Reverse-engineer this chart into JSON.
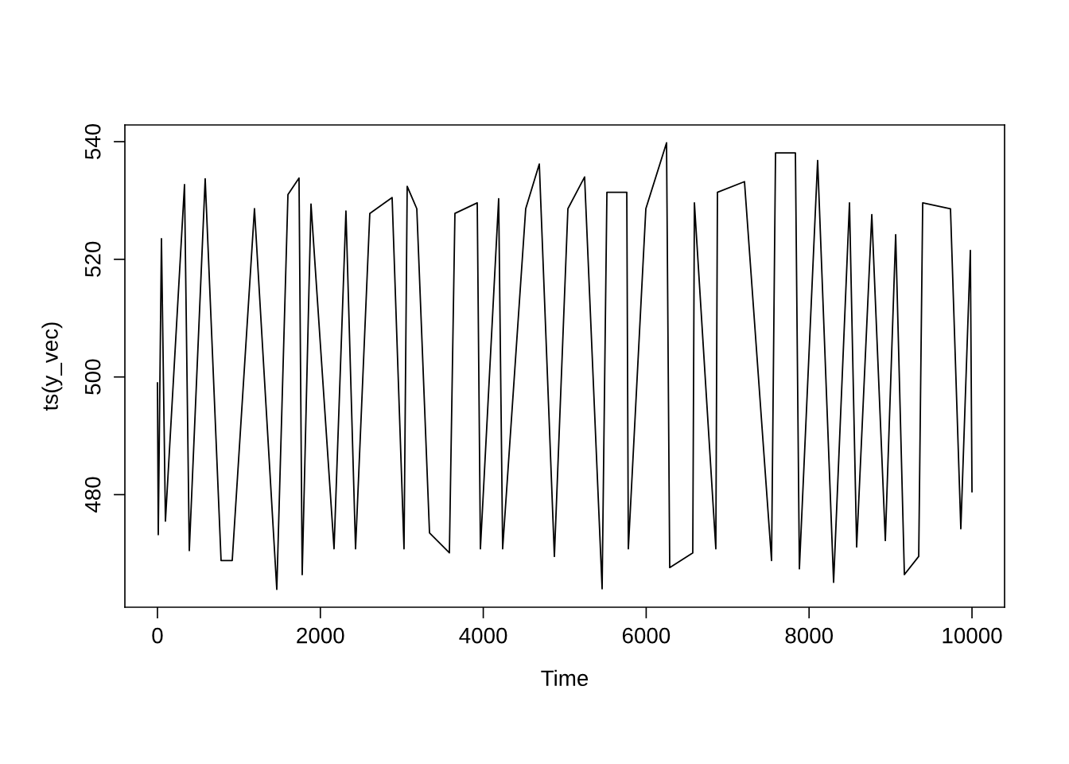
{
  "chart_data": {
    "type": "line",
    "xlabel": "Time",
    "ylabel": "ts(y_vec)",
    "xlim": [
      -400,
      10400
    ],
    "ylim": [
      460.86,
      542.84
    ],
    "xticks": [
      0,
      2000,
      4000,
      6000,
      8000,
      10000
    ],
    "yticks": [
      480,
      500,
      520,
      540
    ],
    "grid": false,
    "marker": "none",
    "line_style": "solid",
    "series": [
      {
        "color": "#000000",
        "x": [
          0,
          10,
          49,
          98,
          332,
          391,
          586,
          781,
          918,
          1191,
          1465,
          1602,
          1738,
          1777,
          1885,
          2168,
          2314,
          2432,
          2607,
          2881,
          3027,
          3066,
          3184,
          3340,
          3584,
          3652,
          3926,
          3965,
          4189,
          4238,
          4521,
          4688,
          4873,
          5039,
          5244,
          5459,
          5518,
          5762,
          5781,
          5996,
          6250,
          6289,
          6572,
          6592,
          6855,
          6875,
          7207,
          7539,
          7588,
          7832,
          7881,
          8105,
          8301,
          8496,
          8584,
          8770,
          8936,
          9063,
          9170,
          9346,
          9395,
          9736,
          9863,
          9980,
          10000
        ],
        "values": [
          499,
          473.2,
          523.5,
          475.5,
          532.7,
          470.5,
          533.7,
          468.8,
          468.8,
          528.6,
          463.9,
          531,
          533.8,
          466.4,
          529.4,
          470.8,
          528.2,
          470.8,
          527.8,
          530.5,
          470.8,
          532.4,
          528.6,
          473.5,
          470.1,
          527.8,
          529.6,
          470.8,
          530.3,
          470.8,
          528.6,
          536.2,
          469.5,
          528.6,
          534,
          464,
          531.4,
          531.4,
          470.8,
          528.6,
          539.8,
          467.6,
          470.1,
          529.6,
          470.8,
          531.4,
          533.2,
          468.8,
          538.1,
          538.1,
          467.4,
          536.8,
          465.1,
          529.6,
          471.1,
          527.6,
          472.2,
          524.2,
          466.4,
          469.5,
          529.6,
          528.6,
          474.2,
          521.5,
          480.5
        ]
      }
    ]
  }
}
